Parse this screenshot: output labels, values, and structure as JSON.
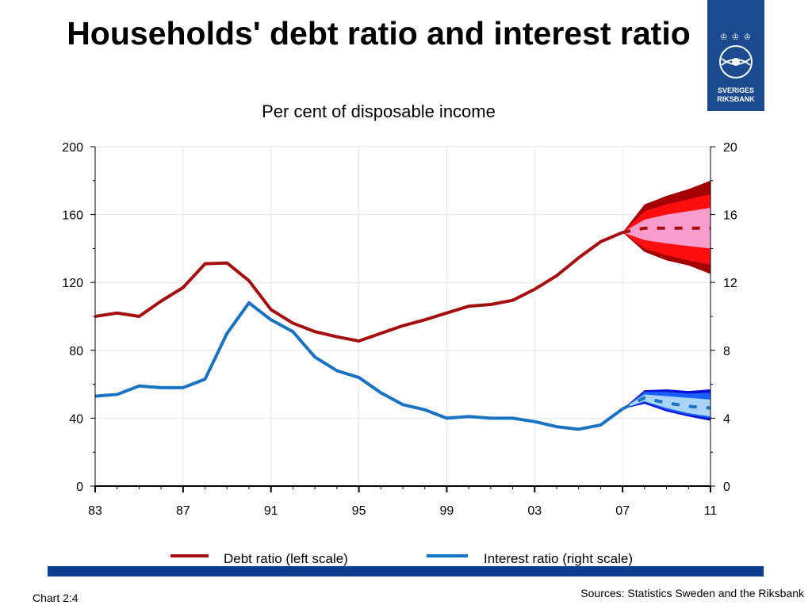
{
  "title": "Households' debt ratio and interest ratio",
  "subtitle": "Per cent of disposable income",
  "logo": {
    "name_line1": "SVERIGES",
    "name_line2": "RIKSBANK",
    "brand_color": "#1b4a8f"
  },
  "footer": {
    "chart_number": "Chart 2:4",
    "source": "Sources: Statistics Sweden and the Riksbank"
  },
  "colors": {
    "debt": "#a50f0f",
    "interest": "#1a73c2",
    "grid": "#e6e6e6",
    "bottom_bar": "#0c3d8f"
  },
  "chart_data": {
    "type": "line",
    "title": "Households' debt ratio and interest ratio",
    "subtitle": "Per cent of disposable income",
    "x_range": [
      1983,
      2011
    ],
    "x_ticks": [
      1983,
      1987,
      1991,
      1995,
      1999,
      2003,
      2007,
      2011
    ],
    "x_tick_labels": [
      "83",
      "87",
      "91",
      "95",
      "99",
      "03",
      "07",
      "11"
    ],
    "y_left": {
      "range": [
        0,
        200
      ],
      "ticks": [
        0,
        40,
        80,
        120,
        160,
        200
      ],
      "tick_labels": [
        "0",
        "40",
        "80",
        "120",
        "160",
        "200"
      ]
    },
    "y_right": {
      "range": [
        0,
        20
      ],
      "ticks": [
        0,
        4,
        8,
        12,
        16,
        20
      ],
      "tick_labels": [
        "0",
        "4",
        "8",
        "12",
        "16",
        "20"
      ]
    },
    "grid": true,
    "legend_position": "bottom",
    "series": [
      {
        "name": "Debt ratio (left scale)",
        "axis": "left",
        "color": "#a50f0f",
        "x": [
          1983,
          1984,
          1985,
          1986,
          1987,
          1988,
          1989,
          1990,
          1991,
          1992,
          1993,
          1994,
          1995,
          1996,
          1997,
          1998,
          1999,
          2000,
          2001,
          2002,
          2003,
          2004,
          2005,
          2006,
          2007
        ],
        "values": [
          100,
          102,
          100,
          109,
          117,
          131,
          131.5,
          121,
          104,
          96,
          91,
          88,
          85.5,
          90,
          94.5,
          98,
          102,
          106,
          107,
          109.5,
          116,
          124,
          134.5,
          144,
          149.5
        ],
        "forecast": {
          "x": [
            2007,
            2008,
            2009,
            2010,
            2011
          ],
          "central": [
            149.5,
            152,
            152,
            152,
            152
          ],
          "bands": [
            {
              "level": "inner",
              "color": "#f79ccc",
              "lower": [
                149.5,
                145,
                143,
                141.5,
                140
              ],
              "upper": [
                149.5,
                157,
                160,
                162,
                164
              ]
            },
            {
              "level": "middle",
              "color": "#fe0e0e",
              "lower": [
                149.5,
                140,
                136,
                133,
                130.5
              ],
              "upper": [
                149.5,
                162,
                166,
                169,
                172
              ]
            },
            {
              "level": "outer",
              "color": "#a50000",
              "lower": [
                149.5,
                138,
                133,
                130,
                125
              ],
              "upper": [
                149.5,
                166,
                171,
                175,
                180
              ]
            }
          ]
        }
      },
      {
        "name": "Interest ratio (right scale)",
        "axis": "right",
        "color": "#1a73c2",
        "x": [
          1983,
          1984,
          1985,
          1986,
          1987,
          1988,
          1989,
          1990,
          1991,
          1992,
          1993,
          1994,
          1995,
          1996,
          1997,
          1998,
          1999,
          2000,
          2001,
          2002,
          2003,
          2004,
          2005,
          2006,
          2007
        ],
        "values": [
          5.3,
          5.4,
          5.9,
          5.8,
          5.8,
          6.3,
          9.0,
          10.8,
          9.8,
          9.1,
          7.6,
          6.8,
          6.4,
          5.5,
          4.8,
          4.5,
          4.0,
          4.1,
          4.0,
          4.0,
          3.8,
          3.5,
          3.35,
          3.6,
          4.55
        ],
        "forecast": {
          "x": [
            2007,
            2008,
            2009,
            2010,
            2011
          ],
          "central": [
            4.55,
            5.2,
            4.9,
            4.7,
            4.6
          ],
          "bands": [
            {
              "level": "inner",
              "color": "#a9d4f5",
              "lower": [
                4.55,
                5.0,
                4.6,
                4.3,
                4.1
              ],
              "upper": [
                4.55,
                5.4,
                5.3,
                5.2,
                5.1
              ]
            },
            {
              "level": "middle",
              "color": "#1a60ff",
              "lower": [
                4.55,
                4.95,
                4.5,
                4.2,
                4.0
              ],
              "upper": [
                4.55,
                5.55,
                5.55,
                5.45,
                5.5
              ]
            },
            {
              "level": "outer",
              "color": "#0a10d8",
              "lower": [
                4.55,
                4.85,
                4.4,
                4.1,
                3.85
              ],
              "upper": [
                4.55,
                5.65,
                5.7,
                5.6,
                5.7
              ]
            }
          ]
        }
      }
    ]
  }
}
